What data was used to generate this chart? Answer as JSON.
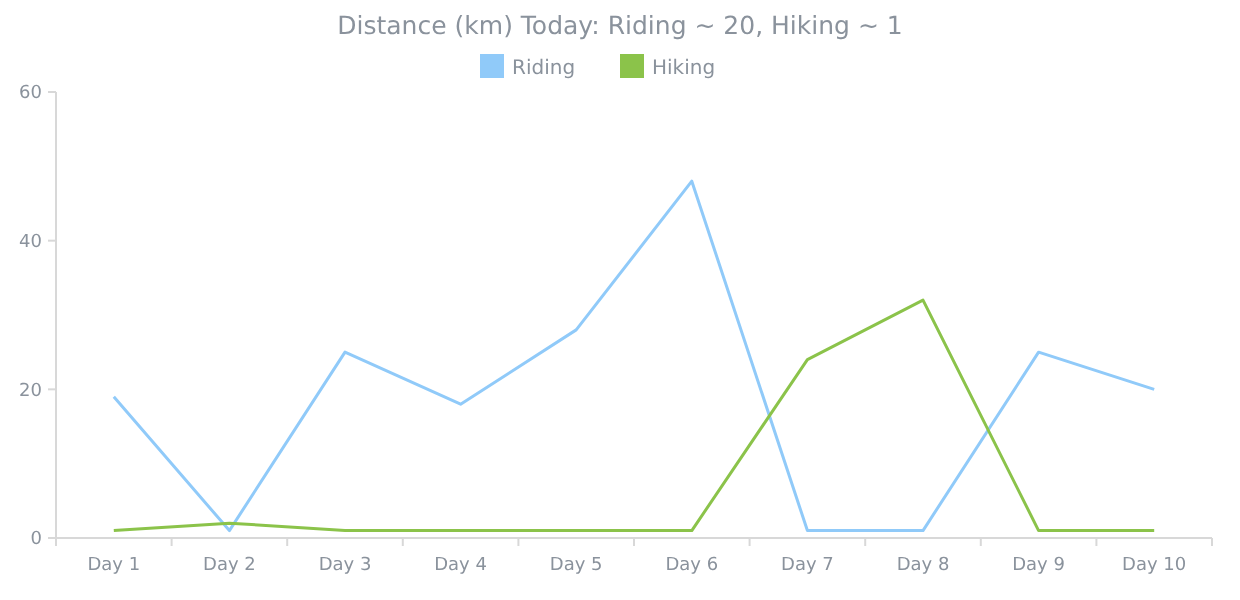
{
  "chart_data": {
    "type": "line",
    "title": "Distance (km) Today: Riding ~ 20, Hiking ~ 1",
    "categories": [
      "Day 1",
      "Day 2",
      "Day 3",
      "Day 4",
      "Day 5",
      "Day 6",
      "Day 7",
      "Day 8",
      "Day 9",
      "Day 10"
    ],
    "series": [
      {
        "name": "Riding",
        "color": "#90caf9",
        "values": [
          19,
          1,
          25,
          18,
          28,
          48,
          1,
          1,
          25,
          20
        ]
      },
      {
        "name": "Hiking",
        "color": "#8bc34a",
        "values": [
          1,
          2,
          1,
          1,
          1,
          1,
          24,
          32,
          1,
          1
        ]
      }
    ],
    "ylim": [
      0,
      60
    ],
    "yticks": [
      0,
      20,
      40,
      60
    ],
    "legend": "top",
    "marker": "none",
    "line_style": "solid"
  }
}
